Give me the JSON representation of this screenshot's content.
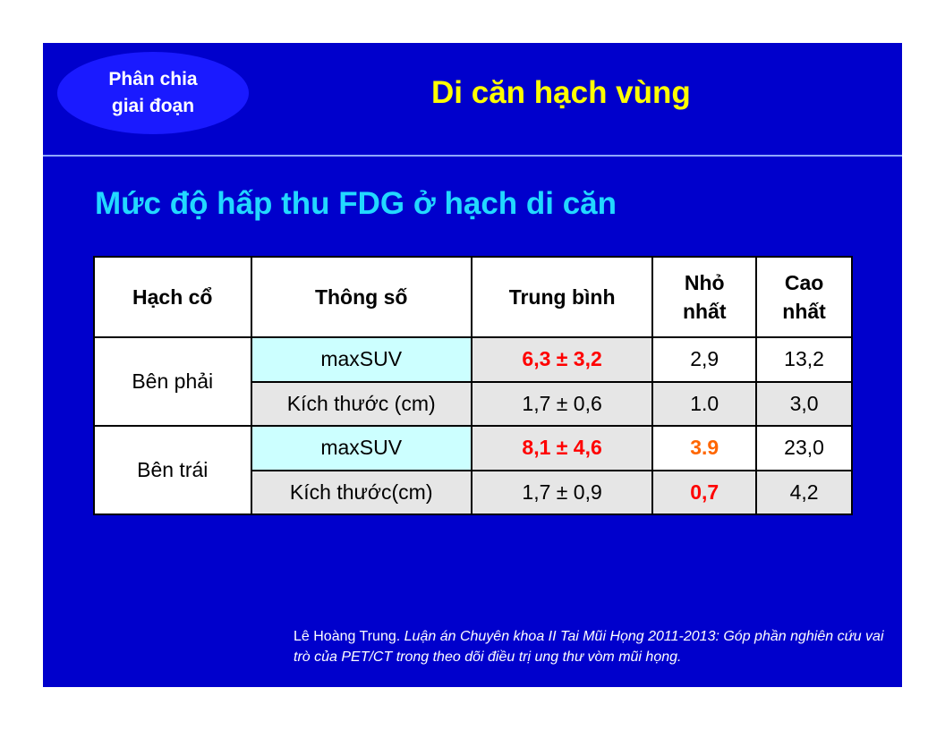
{
  "header": {
    "badge_text": "Phân chia\ngiai đoạn",
    "title": "Di căn hạch vùng"
  },
  "subtitle": "Mức độ hấp thu FDG ở hạch di căn",
  "table": {
    "headers": [
      "Hạch cổ",
      "Thông số",
      "Trung bình",
      "Nhỏ nhất",
      "Cao nhất"
    ],
    "groups": [
      {
        "label": "Bên phải",
        "rows": [
          {
            "param": "maxSUV",
            "mean": "6,3 ± 3,2",
            "min": "2,9",
            "max": "13,2"
          },
          {
            "param": "Kích thước (cm)",
            "mean": "1,7 ± 0,6",
            "min": "1.0",
            "max": "3,0"
          }
        ]
      },
      {
        "label": "Bên trái",
        "rows": [
          {
            "param": "maxSUV",
            "mean": "8,1 ± 4,6",
            "min": "3.9",
            "max": "23,0"
          },
          {
            "param": "Kích thước(cm)",
            "mean": "1,7 ± 0,9",
            "min": "0,7",
            "max": "4,2"
          }
        ]
      }
    ]
  },
  "citation": {
    "author": "Lê Hoàng Trung.",
    "work": "Luận án Chuyên khoa II Tai Mũi Họng 2011-2013: Góp phần nghiên cứu vai trò của PET/CT trong theo dõi điều trị ung thư vòm mũi họng."
  }
}
